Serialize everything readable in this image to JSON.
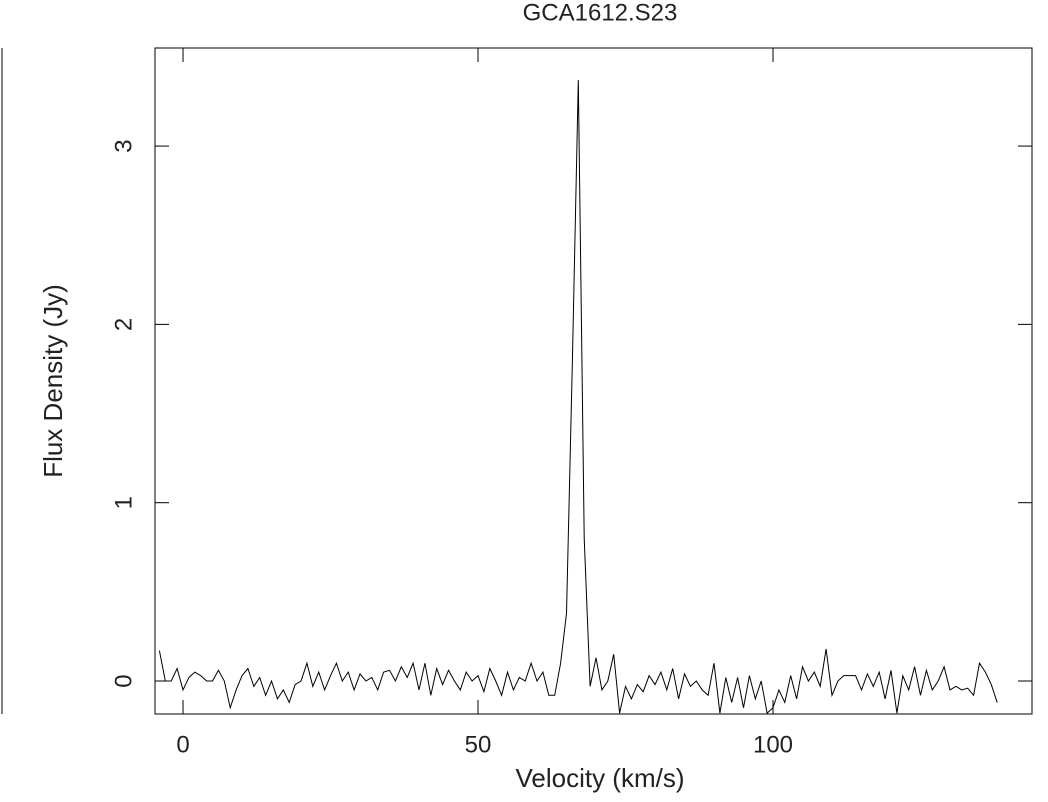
{
  "chart_data": {
    "type": "line",
    "title": "GCA1612.S23",
    "x_label": "Velocity (km/s)",
    "y_label": "Flux Density (Jy)",
    "x": [
      -4,
      -3,
      -2,
      -1,
      0,
      1,
      2,
      3,
      4,
      5,
      6,
      7,
      8,
      9,
      10,
      11,
      12,
      13,
      14,
      15,
      16,
      17,
      18,
      19,
      20,
      21,
      22,
      23,
      24,
      25,
      26,
      27,
      28,
      29,
      30,
      31,
      32,
      33,
      34,
      35,
      36,
      37,
      38,
      39,
      40,
      41,
      42,
      43,
      44,
      45,
      46,
      47,
      48,
      49,
      50,
      51,
      52,
      53,
      54,
      55,
      56,
      57,
      58,
      59,
      60,
      61,
      62,
      63,
      64,
      65,
      66,
      67,
      68,
      69,
      70,
      71,
      72,
      73,
      74,
      75,
      76,
      77,
      78,
      79,
      80,
      81,
      82,
      83,
      84,
      85,
      86,
      87,
      88,
      89,
      90,
      91,
      92,
      93,
      94,
      95,
      96,
      97,
      98,
      99,
      100,
      101,
      102,
      103,
      104,
      105,
      106,
      107,
      108,
      109,
      110,
      111,
      112,
      113,
      114,
      115,
      116,
      117,
      118,
      119,
      120,
      121,
      122,
      123,
      124,
      125,
      126,
      127,
      128,
      129,
      130,
      131,
      132,
      133,
      134,
      135,
      136,
      137,
      138
    ],
    "series": [
      {
        "color": "#000000",
        "values": [
          0.17,
          0.0,
          0.0,
          0.07,
          -0.05,
          0.02,
          0.05,
          0.03,
          0.0,
          0.0,
          0.06,
          0.0,
          -0.15,
          -0.05,
          0.03,
          0.07,
          -0.03,
          0.02,
          -0.08,
          0.0,
          -0.1,
          -0.05,
          -0.12,
          -0.02,
          0.0,
          0.1,
          -0.03,
          0.05,
          -0.05,
          0.03,
          0.1,
          0.0,
          0.05,
          -0.05,
          0.04,
          0.0,
          0.02,
          -0.05,
          0.05,
          0.06,
          0.0,
          0.08,
          0.02,
          0.1,
          -0.05,
          0.1,
          -0.08,
          0.07,
          -0.02,
          0.06,
          0.0,
          -0.05,
          0.05,
          0.0,
          0.03,
          -0.06,
          0.07,
          0.0,
          -0.08,
          0.05,
          -0.05,
          0.02,
          0.0,
          0.1,
          0.0,
          0.05,
          -0.08,
          -0.08,
          0.1,
          0.38,
          1.8,
          3.37,
          0.8,
          -0.03,
          0.13,
          -0.05,
          0.0,
          0.15,
          -0.18,
          -0.03,
          -0.1,
          -0.02,
          -0.06,
          0.03,
          -0.02,
          0.05,
          -0.05,
          0.07,
          -0.1,
          0.04,
          -0.03,
          0.0,
          -0.05,
          -0.08,
          0.1,
          -0.18,
          0.02,
          -0.12,
          0.02,
          -0.15,
          0.03,
          -0.1,
          0.0,
          -0.18,
          -0.15,
          -0.05,
          -0.12,
          0.03,
          -0.1,
          0.08,
          0.0,
          0.05,
          -0.03,
          0.18,
          -0.08,
          0.0,
          0.03,
          0.03,
          0.03,
          -0.05,
          0.04,
          -0.03,
          0.05,
          -0.1,
          0.06,
          -0.18,
          0.03,
          -0.05,
          0.08,
          -0.08,
          0.06,
          -0.05,
          0.0,
          0.08,
          -0.05,
          -0.03,
          -0.05,
          -0.04,
          -0.08,
          0.1,
          0.05,
          -0.02,
          -0.12
        ]
      }
    ],
    "xlim": [
      -4.75,
      143.9
    ],
    "ylim": [
      -0.185,
      3.55
    ],
    "xticks": [
      0,
      50,
      100
    ],
    "yticks": [
      0,
      1,
      2,
      3
    ]
  }
}
